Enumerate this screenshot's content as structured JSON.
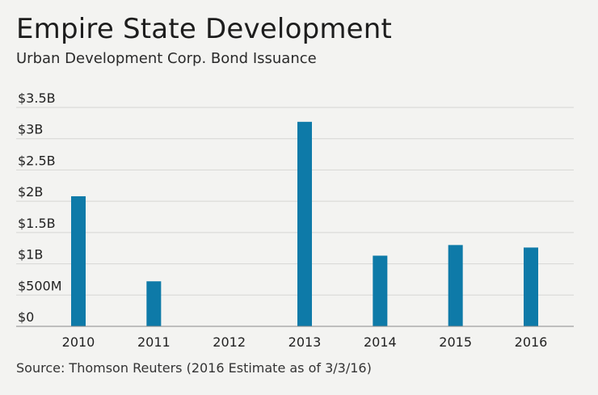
{
  "chart_data": {
    "type": "bar",
    "title": "Empire State Development",
    "subtitle": "Urban Development Corp. Bond Issuance",
    "source": "Source: Thomson Reuters (2016 Estimate as of 3/3/16)",
    "categories": [
      "2010",
      "2011",
      "2012",
      "2013",
      "2014",
      "2015",
      "2016"
    ],
    "values": [
      2.08,
      0.72,
      0,
      3.27,
      1.13,
      1.3,
      1.26
    ],
    "unit": "billions USD",
    "ylim": [
      0,
      3.5
    ],
    "yticks": [
      {
        "value": 0,
        "label": "$0"
      },
      {
        "value": 0.5,
        "label": "$500M"
      },
      {
        "value": 1,
        "label": "$1B"
      },
      {
        "value": 1.5,
        "label": "$1.5B"
      },
      {
        "value": 2,
        "label": "$2B"
      },
      {
        "value": 2.5,
        "label": "$2.5B"
      },
      {
        "value": 3,
        "label": "$3B"
      },
      {
        "value": 3.5,
        "label": "$3.5B"
      }
    ],
    "xlabel": "",
    "ylabel": "",
    "grid": true,
    "bar_color": "#0e7aa8",
    "grid_color": "#d6d6d4",
    "axis_color": "#8a8a8a"
  }
}
